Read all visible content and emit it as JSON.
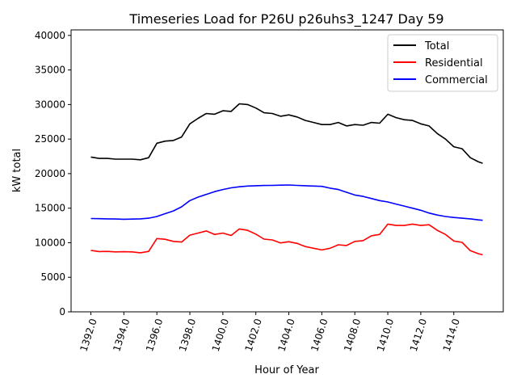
{
  "chart_data": {
    "type": "line",
    "title": "Timeseries Load for P26U p26uhs3_1247  Day 59",
    "xlabel": "Hour of Year",
    "ylabel": "kW total",
    "xlim": [
      1390.8,
      1417.0
    ],
    "ylim": [
      0,
      40800
    ],
    "xticks": [
      1392,
      1394,
      1396,
      1398,
      1400,
      1402,
      1404,
      1406,
      1408,
      1410,
      1412,
      1414
    ],
    "xtick_labels": [
      "1392.0",
      "1394.0",
      "1396.0",
      "1398.0",
      "1400.0",
      "1402.0",
      "1404.0",
      "1406.0",
      "1408.0",
      "1410.0",
      "1412.0",
      "1414.0"
    ],
    "yticks": [
      0,
      5000,
      10000,
      15000,
      20000,
      25000,
      30000,
      35000,
      40000
    ],
    "ytick_labels": [
      "0",
      "5000",
      "10000",
      "15000",
      "20000",
      "25000",
      "30000",
      "35000",
      "40000"
    ],
    "grid": false,
    "legend_position": "top-right",
    "x": [
      1392,
      1392.5,
      1393,
      1393.5,
      1394,
      1394.5,
      1395,
      1395.5,
      1396,
      1396.5,
      1397,
      1397.5,
      1398,
      1398.5,
      1399,
      1399.5,
      1400,
      1400.5,
      1401,
      1401.5,
      1402,
      1402.5,
      1403,
      1403.5,
      1404,
      1404.5,
      1405,
      1405.5,
      1406,
      1406.5,
      1407,
      1407.5,
      1408,
      1408.5,
      1409,
      1409.5,
      1410,
      1410.5,
      1411,
      1411.5,
      1412,
      1412.5,
      1413,
      1413.5,
      1414,
      1414.5,
      1415,
      1415.5,
      1415.75
    ],
    "series": [
      {
        "name": "Total",
        "color": "#000000",
        "values": [
          22400,
          22200,
          22200,
          22100,
          22100,
          22100,
          22000,
          22300,
          24400,
          24700,
          24800,
          25300,
          27200,
          28000,
          28700,
          28600,
          29100,
          29000,
          30100,
          30000,
          29500,
          28800,
          28700,
          28300,
          28500,
          28200,
          27700,
          27400,
          27100,
          27100,
          27400,
          26900,
          27100,
          27000,
          27400,
          27300,
          28600,
          28100,
          27800,
          27700,
          27200,
          26900,
          25800,
          25000,
          23900,
          23600,
          22300,
          21700,
          21500
        ]
      },
      {
        "name": "Residential",
        "color": "#ff0000",
        "values": [
          8900,
          8720,
          8750,
          8670,
          8700,
          8680,
          8550,
          8750,
          10600,
          10500,
          10200,
          10100,
          11100,
          11400,
          11700,
          11200,
          11400,
          11050,
          12000,
          11800,
          11250,
          10520,
          10400,
          9970,
          10150,
          9900,
          9450,
          9200,
          8950,
          9200,
          9700,
          9600,
          10200,
          10300,
          11000,
          11200,
          12700,
          12500,
          12500,
          12700,
          12500,
          12600,
          11800,
          11200,
          10250,
          10050,
          8850,
          8400,
          8250
        ]
      },
      {
        "name": "Commercial",
        "color": "#0000ff",
        "values": [
          13500,
          13480,
          13450,
          13430,
          13400,
          13420,
          13450,
          13550,
          13800,
          14200,
          14600,
          15200,
          16100,
          16600,
          17000,
          17400,
          17700,
          17950,
          18100,
          18200,
          18250,
          18280,
          18300,
          18330,
          18350,
          18300,
          18250,
          18200,
          18150,
          17900,
          17700,
          17300,
          16900,
          16700,
          16400,
          16100,
          15900,
          15600,
          15300,
          15000,
          14700,
          14300,
          14000,
          13800,
          13650,
          13550,
          13450,
          13300,
          13250
        ]
      }
    ]
  }
}
